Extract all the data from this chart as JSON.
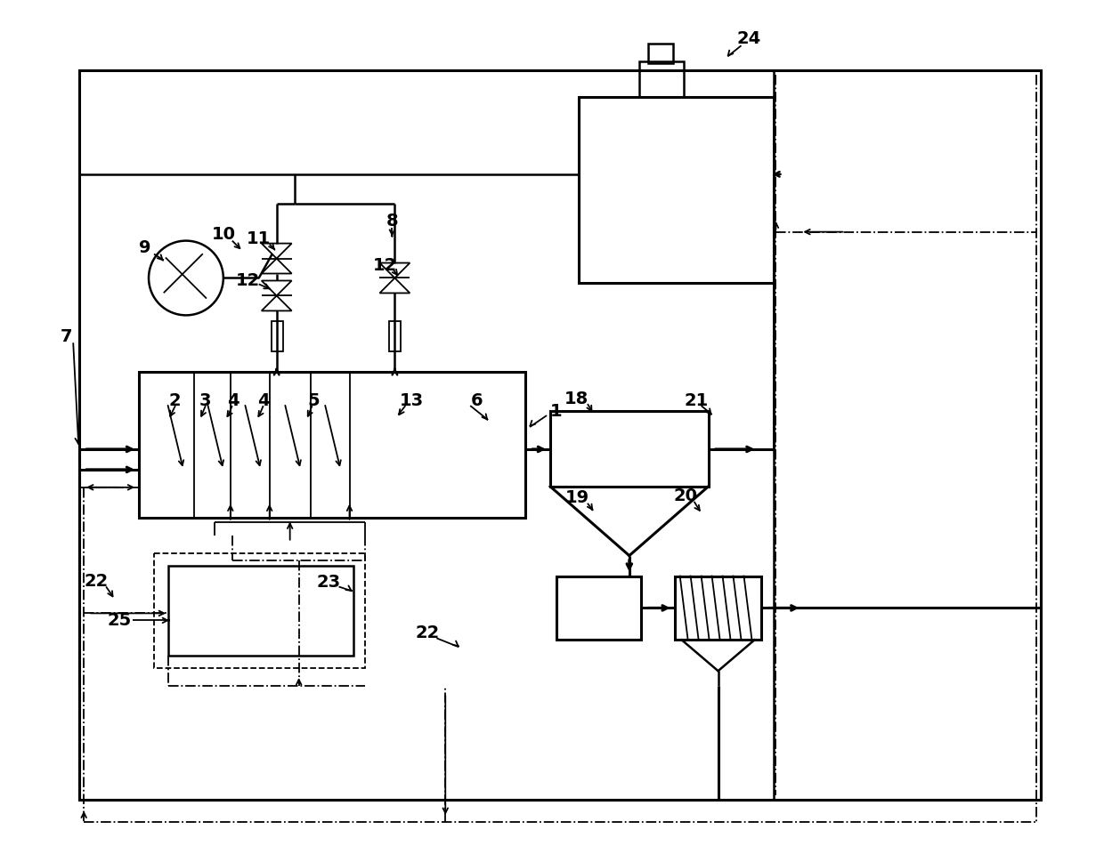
{
  "bg": "#ffffff",
  "lc": "#000000",
  "fig_w": 12.4,
  "fig_h": 9.69
}
